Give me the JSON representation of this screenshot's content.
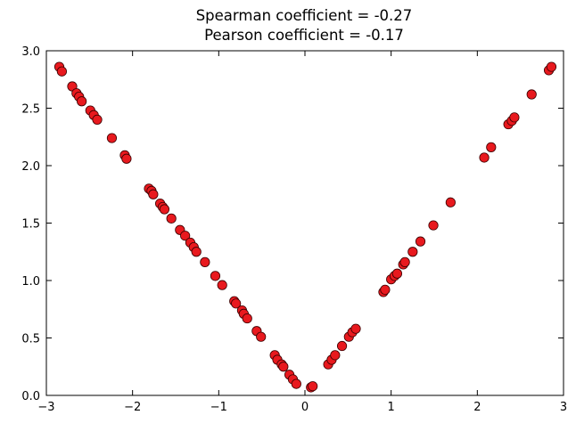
{
  "chart_data": {
    "type": "scatter",
    "title_lines": [
      "Spearman coefficient = -0.27",
      "Pearson coefficient = -0.17"
    ],
    "xlabel": "",
    "ylabel": "",
    "xlim": [
      -3,
      3
    ],
    "ylim": [
      0,
      3
    ],
    "x_ticks": [
      -3,
      -2,
      -1,
      0,
      1,
      2,
      3
    ],
    "x_tick_labels": [
      "−3",
      "−2",
      "−1",
      "0",
      "1",
      "2",
      "3"
    ],
    "y_ticks": [
      0,
      0.5,
      1.0,
      1.5,
      2.0,
      2.5,
      3.0
    ],
    "y_tick_labels": [
      "0.0",
      "0.5",
      "1.0",
      "1.5",
      "2.0",
      "2.5",
      "3.0"
    ],
    "grid": false,
    "marker_color": "#e8191e",
    "marker_edge_color": "#3a0000",
    "series": [
      {
        "points": [
          [
            -2.85,
            2.86
          ],
          [
            -2.82,
            2.82
          ],
          [
            -2.7,
            2.69
          ],
          [
            -2.65,
            2.63
          ],
          [
            -2.62,
            2.6
          ],
          [
            -2.59,
            2.56
          ],
          [
            -2.49,
            2.48
          ],
          [
            -2.45,
            2.44
          ],
          [
            -2.41,
            2.4
          ],
          [
            -2.24,
            2.24
          ],
          [
            -2.09,
            2.09
          ],
          [
            -2.07,
            2.06
          ],
          [
            -1.81,
            1.8
          ],
          [
            -1.78,
            1.78
          ],
          [
            -1.76,
            1.75
          ],
          [
            -1.68,
            1.67
          ],
          [
            -1.65,
            1.64
          ],
          [
            -1.63,
            1.62
          ],
          [
            -1.55,
            1.54
          ],
          [
            -1.45,
            1.44
          ],
          [
            -1.39,
            1.39
          ],
          [
            -1.33,
            1.33
          ],
          [
            -1.29,
            1.29
          ],
          [
            -1.26,
            1.25
          ],
          [
            -1.16,
            1.16
          ],
          [
            -1.04,
            1.04
          ],
          [
            -0.96,
            0.96
          ],
          [
            -0.82,
            0.82
          ],
          [
            -0.8,
            0.8
          ],
          [
            -0.73,
            0.74
          ],
          [
            -0.71,
            0.71
          ],
          [
            -0.67,
            0.67
          ],
          [
            -0.56,
            0.56
          ],
          [
            -0.51,
            0.51
          ],
          [
            -0.35,
            0.35
          ],
          [
            -0.32,
            0.31
          ],
          [
            -0.27,
            0.27
          ],
          [
            -0.25,
            0.25
          ],
          [
            -0.18,
            0.18
          ],
          [
            -0.14,
            0.14
          ],
          [
            -0.1,
            0.1
          ],
          [
            0.07,
            0.07
          ],
          [
            0.09,
            0.08
          ],
          [
            0.27,
            0.27
          ],
          [
            0.31,
            0.31
          ],
          [
            0.35,
            0.35
          ],
          [
            0.43,
            0.43
          ],
          [
            0.51,
            0.51
          ],
          [
            0.55,
            0.55
          ],
          [
            0.59,
            0.58
          ],
          [
            0.91,
            0.9
          ],
          [
            0.93,
            0.92
          ],
          [
            1.0,
            1.01
          ],
          [
            1.04,
            1.04
          ],
          [
            1.07,
            1.06
          ],
          [
            1.14,
            1.14
          ],
          [
            1.16,
            1.16
          ],
          [
            1.25,
            1.25
          ],
          [
            1.34,
            1.34
          ],
          [
            1.49,
            1.48
          ],
          [
            1.69,
            1.68
          ],
          [
            2.08,
            2.07
          ],
          [
            2.16,
            2.16
          ],
          [
            2.36,
            2.36
          ],
          [
            2.4,
            2.39
          ],
          [
            2.43,
            2.42
          ],
          [
            2.63,
            2.62
          ],
          [
            2.83,
            2.83
          ],
          [
            2.86,
            2.86
          ]
        ]
      }
    ]
  }
}
